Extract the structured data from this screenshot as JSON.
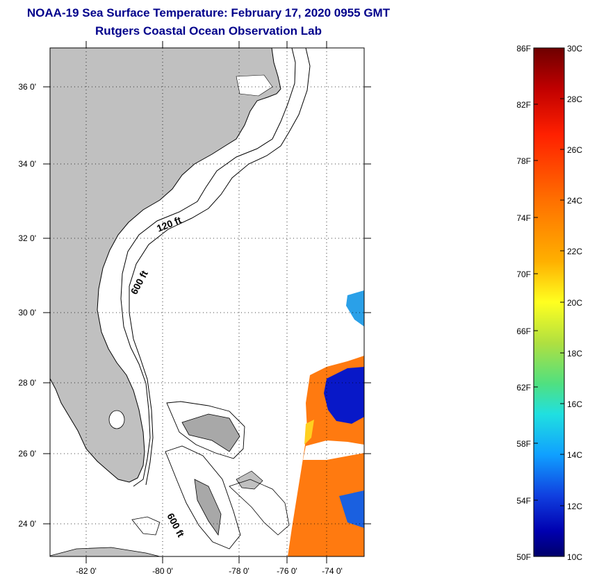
{
  "title_line1": "NOAA-19 Sea Surface Temperature:  February 17, 2020 0955 GMT",
  "title_line2": "Rutgers Coastal Ocean Observation Lab",
  "map": {
    "lat_labels": [
      "36 0'",
      "34 0'",
      "32 0'",
      "30 0'",
      "28 0'",
      "26 0'",
      "24 0'"
    ],
    "lon_labels": [
      "-82 0'",
      "-80 0'",
      "-78 0'",
      "-76 0'",
      "-74 0'"
    ],
    "contour_labels": [
      "120 ft",
      "600 ft",
      "600 ft"
    ],
    "land_color": "#c0c0c0",
    "grid": "dotted"
  },
  "colorbar": {
    "fahrenheit": [
      "86F",
      "82F",
      "78F",
      "74F",
      "70F",
      "66F",
      "62F",
      "58F",
      "54F",
      "50F"
    ],
    "celsius": [
      "30C",
      "28C",
      "26C",
      "24C",
      "22C",
      "20C",
      "18C",
      "16C",
      "14C",
      "12C",
      "10C"
    ],
    "colors": [
      "#7a0000",
      "#e01010",
      "#ff6a00",
      "#ffd000",
      "#ffff30",
      "#9ee040",
      "#20e0e0",
      "#1080ff",
      "#1010d0",
      "#00007a"
    ]
  }
}
